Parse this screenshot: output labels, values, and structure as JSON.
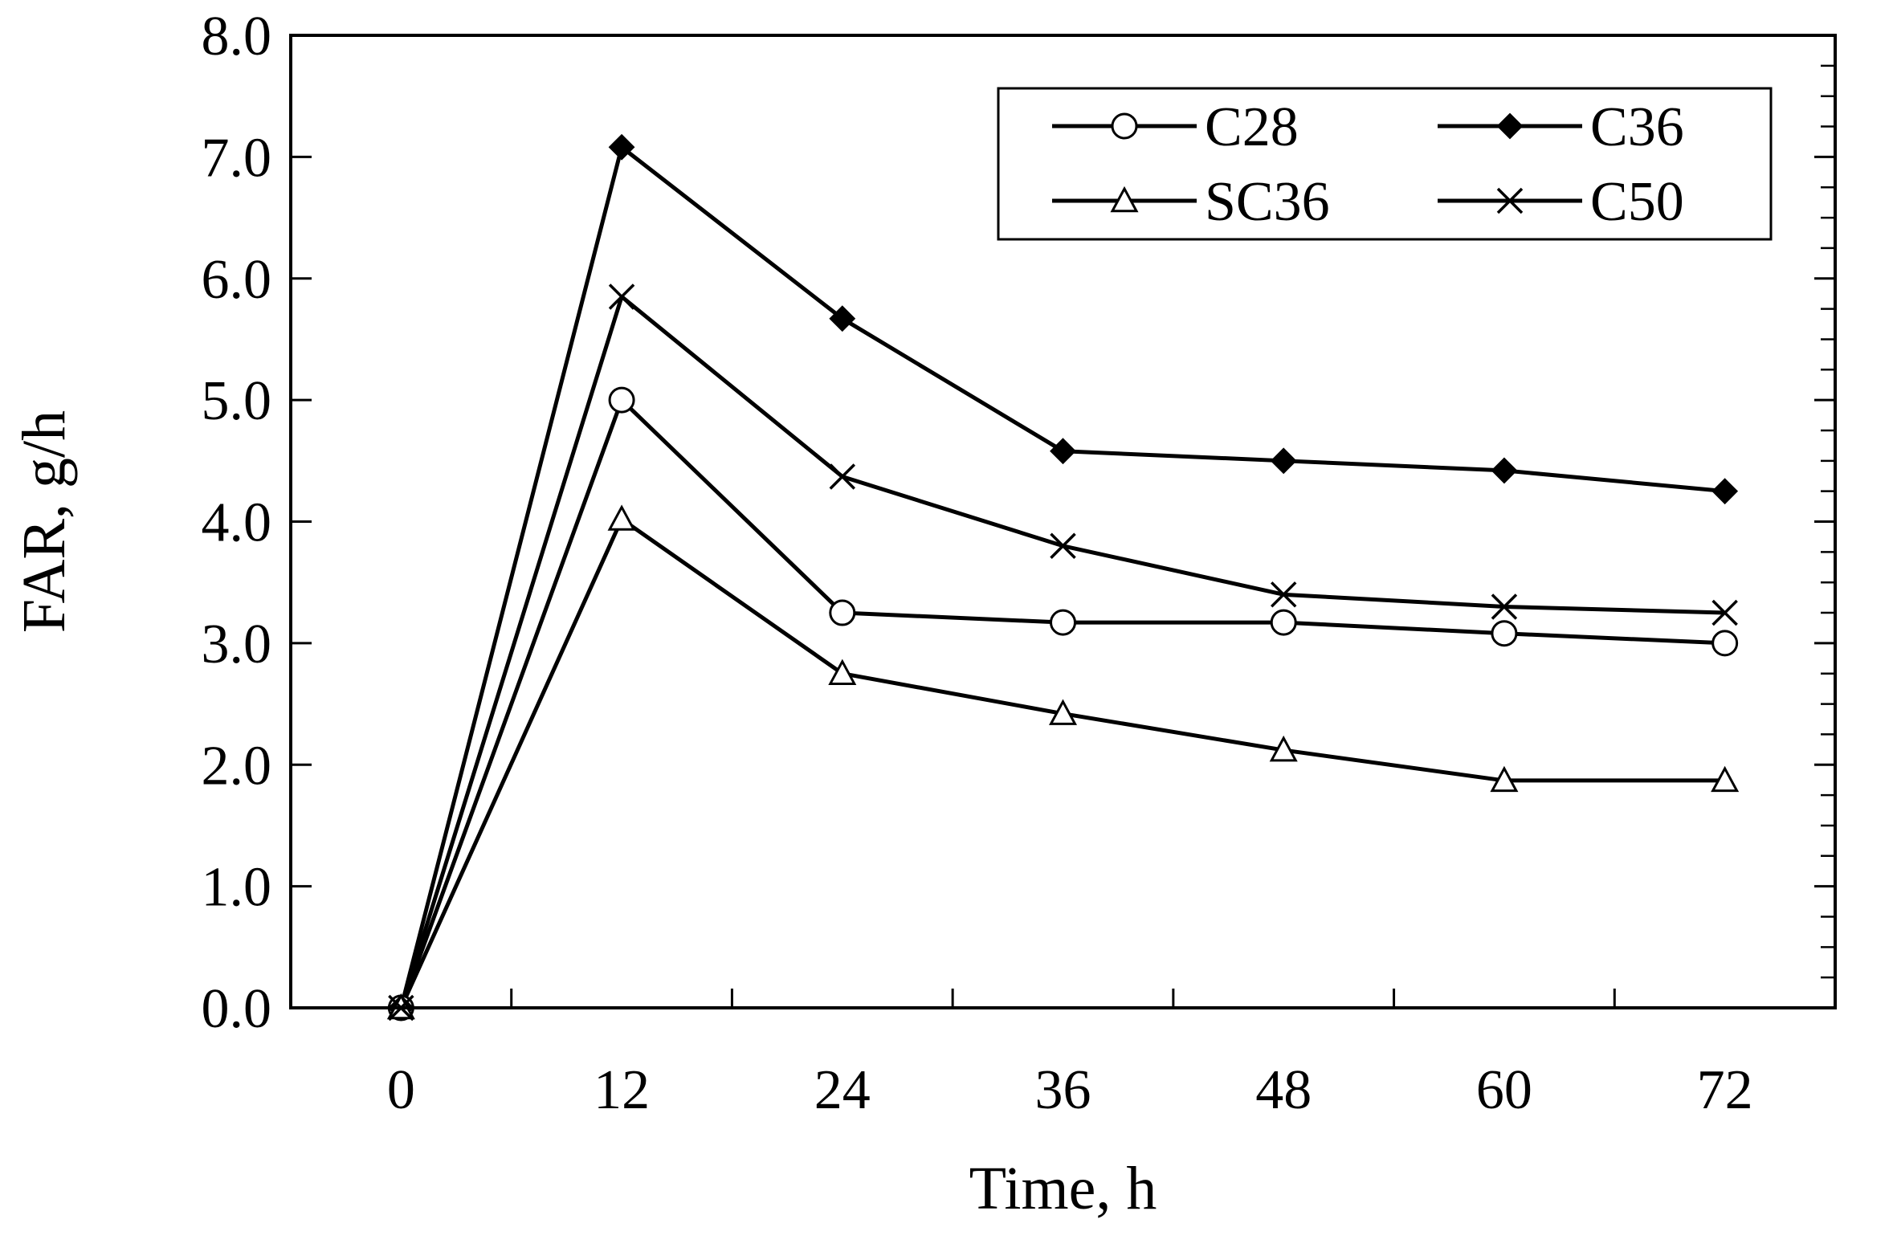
{
  "chart_data": {
    "type": "line",
    "title": "",
    "xlabel": "Time, h",
    "ylabel": "FAR, g/h",
    "x": [
      0,
      12,
      24,
      36,
      48,
      60,
      72
    ],
    "xlim": [
      -6,
      78
    ],
    "ylim": [
      0,
      8
    ],
    "x_ticks": [
      0,
      12,
      24,
      36,
      48,
      60,
      72
    ],
    "x_tick_labels": [
      "0",
      "12",
      "24",
      "36",
      "48",
      "60",
      "72"
    ],
    "y_ticks": [
      0,
      1,
      2,
      3,
      4,
      5,
      6,
      7,
      8
    ],
    "y_tick_labels": [
      "0.0",
      "1.0",
      "2.0",
      "3.0",
      "4.0",
      "5.0",
      "6.0",
      "7.0",
      "8.0"
    ],
    "grid": false,
    "legend_position": "top-right",
    "series": [
      {
        "name": "C28",
        "marker": "open-circle",
        "values": [
          0,
          5.0,
          3.25,
          3.17,
          3.17,
          3.08,
          3.0
        ]
      },
      {
        "name": "C36",
        "marker": "filled-diamond",
        "values": [
          0,
          7.08,
          5.67,
          4.58,
          4.5,
          4.42,
          4.25
        ]
      },
      {
        "name": "SC36",
        "marker": "open-triangle",
        "values": [
          0,
          4.02,
          2.75,
          2.42,
          2.12,
          1.87,
          1.87
        ]
      },
      {
        "name": "C50",
        "marker": "cross",
        "values": [
          0,
          5.85,
          4.37,
          3.8,
          3.4,
          3.3,
          3.25
        ]
      }
    ]
  }
}
